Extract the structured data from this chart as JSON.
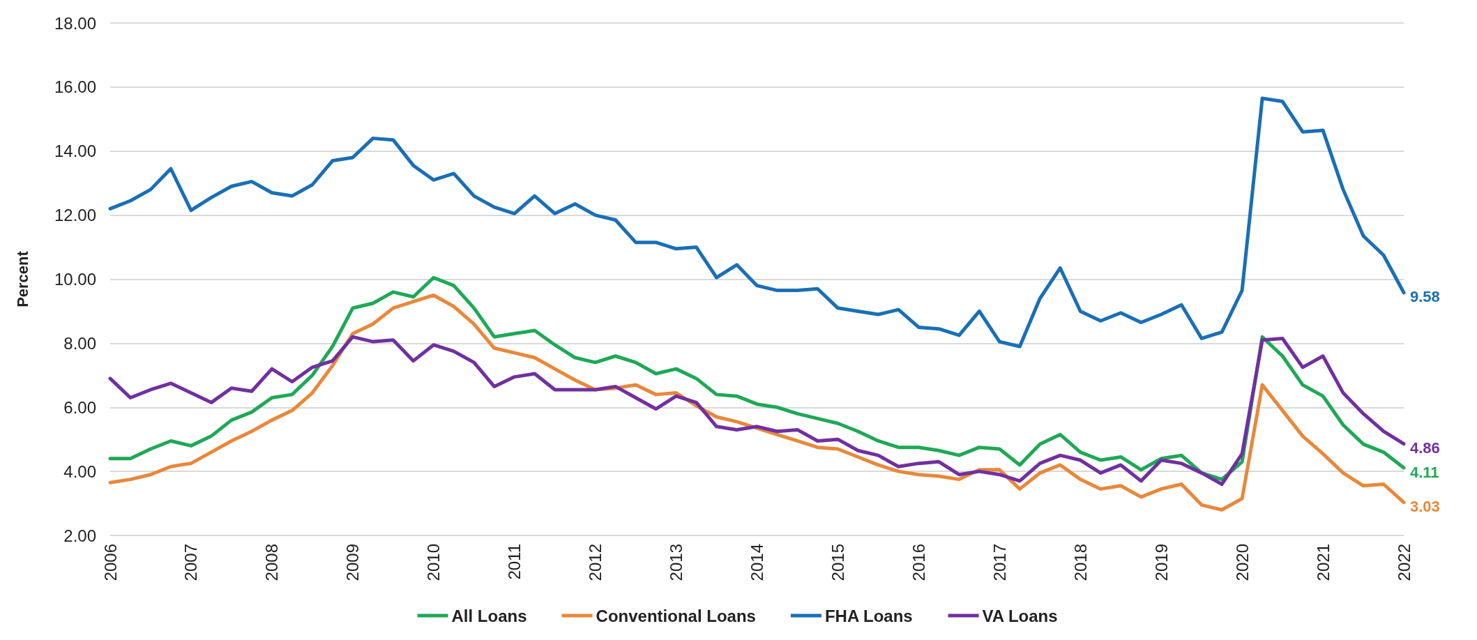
{
  "chart_data": {
    "type": "line",
    "ylabel": "Percent",
    "categories": [
      "2006",
      null,
      null,
      null,
      "2007",
      null,
      null,
      null,
      "2008",
      null,
      null,
      null,
      "2009",
      null,
      null,
      null,
      "2010",
      null,
      null,
      null,
      "2011",
      null,
      null,
      null,
      "2012",
      null,
      null,
      null,
      "2013",
      null,
      null,
      null,
      "2014",
      null,
      null,
      null,
      "2015",
      null,
      null,
      null,
      "2016",
      null,
      null,
      null,
      "2017",
      null,
      null,
      null,
      "2018",
      null,
      null,
      null,
      "2019",
      null,
      null,
      null,
      "2020",
      null,
      null,
      null,
      "2021",
      null,
      null,
      null,
      "2022"
    ],
    "series": [
      {
        "name": "All Loans",
        "color": "#1fa856",
        "values": [
          4.4,
          4.4,
          4.7,
          4.95,
          4.8,
          5.1,
          5.6,
          5.85,
          6.3,
          6.4,
          7.0,
          7.9,
          9.1,
          9.25,
          9.6,
          9.45,
          10.05,
          9.8,
          9.1,
          8.2,
          8.3,
          8.4,
          7.95,
          7.55,
          7.4,
          7.6,
          7.4,
          7.05,
          7.2,
          6.9,
          6.4,
          6.35,
          6.1,
          6.0,
          5.8,
          5.65,
          5.5,
          5.25,
          4.95,
          4.75,
          4.75,
          4.65,
          4.5,
          4.75,
          4.7,
          4.2,
          4.85,
          5.15,
          4.6,
          4.35,
          4.45,
          4.05,
          4.4,
          4.5,
          3.95,
          3.75,
          4.3,
          8.2,
          7.6,
          6.7,
          6.35,
          5.45,
          4.85,
          4.6,
          4.11
        ],
        "value_labels": [
          null,
          null,
          null,
          null,
          null,
          null,
          null,
          null,
          null,
          null,
          null,
          null,
          null,
          null,
          null,
          null,
          null,
          null,
          null,
          null,
          null,
          null,
          null,
          null,
          null,
          null,
          null,
          null,
          null,
          null,
          null,
          null,
          null,
          null,
          null,
          null,
          null,
          null,
          null,
          null,
          null,
          null,
          null,
          null,
          null,
          null,
          null,
          null,
          null,
          null,
          null,
          null,
          null,
          null,
          null,
          null,
          null,
          null,
          null,
          null,
          null,
          null,
          null,
          null,
          "4.11"
        ]
      },
      {
        "name": "Conventional Loans",
        "color": "#e8883a",
        "values": [
          3.65,
          3.75,
          3.9,
          4.15,
          4.25,
          4.6,
          4.95,
          5.25,
          5.6,
          5.9,
          6.45,
          7.3,
          8.3,
          8.6,
          9.1,
          9.3,
          9.5,
          9.15,
          8.6,
          7.85,
          7.7,
          7.55,
          7.2,
          6.85,
          6.55,
          6.6,
          6.7,
          6.4,
          6.45,
          6.05,
          5.7,
          5.55,
          5.35,
          5.15,
          4.95,
          4.75,
          4.7,
          4.45,
          4.2,
          4.0,
          3.9,
          3.85,
          3.75,
          4.05,
          4.05,
          3.45,
          3.95,
          4.2,
          3.75,
          3.45,
          3.55,
          3.2,
          3.45,
          3.6,
          2.95,
          2.8,
          3.15,
          6.7,
          5.9,
          5.1,
          4.55,
          3.95,
          3.55,
          3.6,
          3.03
        ],
        "value_labels": [
          null,
          null,
          null,
          null,
          null,
          null,
          null,
          null,
          null,
          null,
          null,
          null,
          null,
          null,
          null,
          null,
          null,
          null,
          null,
          null,
          null,
          null,
          null,
          null,
          null,
          null,
          null,
          null,
          null,
          null,
          null,
          null,
          null,
          null,
          null,
          null,
          null,
          null,
          null,
          null,
          null,
          null,
          null,
          null,
          null,
          null,
          null,
          null,
          null,
          null,
          null,
          null,
          null,
          null,
          null,
          null,
          null,
          null,
          null,
          null,
          null,
          null,
          null,
          null,
          "3.03"
        ]
      },
      {
        "name": "FHA Loans",
        "color": "#1a6fb5",
        "values": [
          12.2,
          12.45,
          12.8,
          13.45,
          12.15,
          12.55,
          12.9,
          13.05,
          12.7,
          12.6,
          12.95,
          13.7,
          13.8,
          14.4,
          14.35,
          13.55,
          13.1,
          13.3,
          12.6,
          12.25,
          12.05,
          12.6,
          12.05,
          12.35,
          12.0,
          11.85,
          11.15,
          11.15,
          10.95,
          11.0,
          10.05,
          10.45,
          9.8,
          9.65,
          9.65,
          9.7,
          9.1,
          9.0,
          8.9,
          9.05,
          8.5,
          8.45,
          8.25,
          9.0,
          8.05,
          7.9,
          9.4,
          10.35,
          9.0,
          8.7,
          8.95,
          8.65,
          8.9,
          9.2,
          8.15,
          8.35,
          9.65,
          15.65,
          15.55,
          14.6,
          14.65,
          12.8,
          11.35,
          10.75,
          9.58
        ],
        "value_labels": [
          null,
          null,
          null,
          null,
          null,
          null,
          null,
          null,
          null,
          null,
          null,
          null,
          null,
          null,
          null,
          null,
          null,
          null,
          null,
          null,
          null,
          null,
          null,
          null,
          null,
          null,
          null,
          null,
          null,
          null,
          null,
          null,
          null,
          null,
          null,
          null,
          null,
          null,
          null,
          null,
          null,
          null,
          null,
          null,
          null,
          null,
          null,
          null,
          null,
          null,
          null,
          null,
          null,
          null,
          null,
          null,
          null,
          null,
          null,
          null,
          null,
          null,
          null,
          null,
          "9.58"
        ]
      },
      {
        "name": "VA Loans",
        "color": "#7030a0",
        "values": [
          6.9,
          6.3,
          6.55,
          6.75,
          6.45,
          6.15,
          6.6,
          6.5,
          7.2,
          6.8,
          7.25,
          7.45,
          8.2,
          8.05,
          8.1,
          7.45,
          7.95,
          7.75,
          7.4,
          6.65,
          6.95,
          7.05,
          6.55,
          6.55,
          6.55,
          6.65,
          6.3,
          5.95,
          6.35,
          6.15,
          5.4,
          5.3,
          5.4,
          5.25,
          5.3,
          4.95,
          5.0,
          4.65,
          4.5,
          4.15,
          4.25,
          4.3,
          3.9,
          4.0,
          3.9,
          3.7,
          4.25,
          4.5,
          4.35,
          3.95,
          4.2,
          3.7,
          4.35,
          4.25,
          3.95,
          3.6,
          4.55,
          8.1,
          8.15,
          7.25,
          7.6,
          6.45,
          5.8,
          5.25,
          4.86
        ],
        "value_labels": [
          null,
          null,
          null,
          null,
          null,
          null,
          null,
          null,
          null,
          null,
          null,
          null,
          null,
          null,
          null,
          null,
          null,
          null,
          null,
          null,
          null,
          null,
          null,
          null,
          null,
          null,
          null,
          null,
          null,
          null,
          null,
          null,
          null,
          null,
          null,
          null,
          null,
          null,
          null,
          null,
          null,
          null,
          null,
          null,
          null,
          null,
          null,
          null,
          null,
          null,
          null,
          null,
          null,
          null,
          null,
          null,
          null,
          null,
          null,
          null,
          null,
          null,
          null,
          null,
          "4.86"
        ]
      }
    ],
    "ylim": [
      2,
      18
    ],
    "yticks": [
      {
        "value": 2,
        "label": "2.00"
      },
      {
        "value": 4,
        "label": "4.00"
      },
      {
        "value": 6,
        "label": "6.00"
      },
      {
        "value": 8,
        "label": "8.00"
      },
      {
        "value": 10,
        "label": "10.00"
      },
      {
        "value": 12,
        "label": "12.00"
      },
      {
        "value": 14,
        "label": "14.00"
      },
      {
        "value": 16,
        "label": "16.00"
      },
      {
        "value": 18,
        "label": "18.00"
      }
    ],
    "grid": "y",
    "legend": "bottom",
    "marker": "none",
    "line_style": "solid"
  }
}
